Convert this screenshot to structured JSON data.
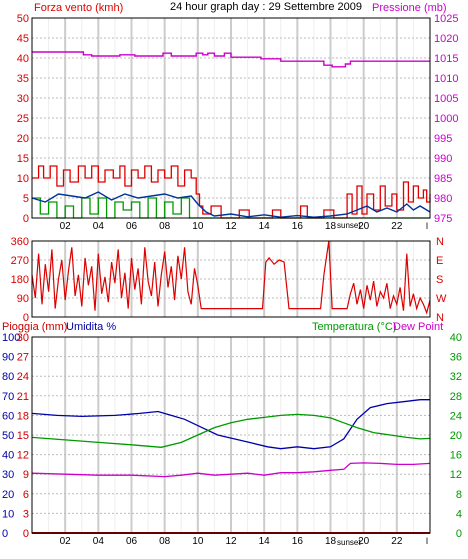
{
  "colors": {
    "wind": "#dd0000",
    "pressure": "#cc00cc",
    "gust": "#003399",
    "green": "#009900",
    "humidity": "#0000aa",
    "rain": "#cc0000",
    "dewpoint": "#cc00cc",
    "grid_v": "#cccccc",
    "grid_h": "#bbbbbb",
    "axis": "#000000"
  },
  "chart_data": [
    {
      "type": "line",
      "name": "wind-pressure",
      "header": {
        "left": "Forza vento (kmh)",
        "center": "24 hour graph day : 29 Settembre 2009",
        "right": "Pressione (mb)"
      },
      "y_left": {
        "ticks": [
          "0",
          "5",
          "10",
          "15",
          "20",
          "25",
          "30",
          "35",
          "40",
          "45",
          "50"
        ],
        "range": [
          0,
          50
        ]
      },
      "y_right": {
        "ticks": [
          "975",
          "980",
          "985",
          "990",
          "995",
          "1000",
          "1005",
          "1010",
          "1015",
          "1020",
          "1025"
        ],
        "range": [
          975,
          1025
        ]
      },
      "x_ticks": [
        "02",
        "04",
        "06",
        "08",
        "10",
        "12",
        "14",
        "16",
        "18",
        "20",
        "22"
      ],
      "x_range": [
        0,
        24
      ],
      "sunset_label": "sunset",
      "sunset_x": 19.2,
      "pressure": [
        [
          0,
          1016.5
        ],
        [
          3.1,
          1016.5
        ],
        [
          3.1,
          1015.8
        ],
        [
          3.6,
          1015.8
        ],
        [
          3.6,
          1015.5
        ],
        [
          5.3,
          1015.5
        ],
        [
          5.3,
          1015.8
        ],
        [
          6.2,
          1015.8
        ],
        [
          6.2,
          1015.5
        ],
        [
          7.9,
          1015.5
        ],
        [
          7.9,
          1016.2
        ],
        [
          8.4,
          1016.2
        ],
        [
          8.4,
          1015.5
        ],
        [
          9.9,
          1015.5
        ],
        [
          9.9,
          1016.2
        ],
        [
          10.3,
          1016.2
        ],
        [
          10.3,
          1015.8
        ],
        [
          10.6,
          1015.8
        ],
        [
          10.6,
          1016.2
        ],
        [
          11.0,
          1016.2
        ],
        [
          11.0,
          1015.5
        ],
        [
          11.6,
          1015.5
        ],
        [
          11.6,
          1016.2
        ],
        [
          12.0,
          1016.2
        ],
        [
          12.0,
          1015.2
        ],
        [
          13.8,
          1015.2
        ],
        [
          13.8,
          1014.8
        ],
        [
          15.0,
          1014.8
        ],
        [
          15.0,
          1014.2
        ],
        [
          17.6,
          1014.2
        ],
        [
          17.6,
          1013.2
        ],
        [
          18.1,
          1013.2
        ],
        [
          18.1,
          1012.8
        ],
        [
          18.9,
          1012.8
        ],
        [
          18.9,
          1013.5
        ],
        [
          19.2,
          1013.5
        ],
        [
          19.2,
          1014.2
        ],
        [
          24,
          1014.2
        ]
      ],
      "wind_max": [
        [
          0,
          10
        ],
        [
          0.4,
          13
        ],
        [
          0.7,
          10
        ],
        [
          1.1,
          13
        ],
        [
          1.5,
          8
        ],
        [
          1.9,
          12
        ],
        [
          2.3,
          9
        ],
        [
          2.8,
          13
        ],
        [
          3.2,
          10
        ],
        [
          3.6,
          13
        ],
        [
          4.0,
          9
        ],
        [
          4.4,
          12
        ],
        [
          4.9,
          10
        ],
        [
          5.3,
          13
        ],
        [
          5.6,
          8
        ],
        [
          6.0,
          12
        ],
        [
          6.4,
          10
        ],
        [
          6.8,
          13
        ],
        [
          7.2,
          9
        ],
        [
          7.6,
          12
        ],
        [
          8.0,
          10
        ],
        [
          8.4,
          13
        ],
        [
          8.8,
          8
        ],
        [
          9.2,
          12
        ],
        [
          9.6,
          10
        ],
        [
          9.9,
          6
        ],
        [
          10.1,
          3
        ],
        [
          10.3,
          1
        ],
        [
          10.8,
          3
        ],
        [
          11.4,
          0
        ],
        [
          12.5,
          2
        ],
        [
          13.1,
          0
        ],
        [
          14.5,
          2
        ],
        [
          15.0,
          0
        ],
        [
          16.2,
          3
        ],
        [
          16.6,
          0
        ],
        [
          17.6,
          2
        ],
        [
          18.2,
          0
        ],
        [
          19.0,
          6
        ],
        [
          19.3,
          1
        ],
        [
          19.6,
          8
        ],
        [
          19.9,
          1
        ],
        [
          20.2,
          6
        ],
        [
          20.6,
          2
        ],
        [
          21.0,
          8
        ],
        [
          21.3,
          3
        ],
        [
          21.7,
          6
        ],
        [
          22.0,
          2
        ],
        [
          22.4,
          9
        ],
        [
          22.7,
          4
        ],
        [
          23.0,
          8
        ],
        [
          23.3,
          5
        ],
        [
          23.6,
          7
        ],
        [
          23.8,
          4
        ],
        [
          24,
          6
        ]
      ],
      "wind_avg": [
        [
          0,
          5
        ],
        [
          0.8,
          4
        ],
        [
          1.6,
          6
        ],
        [
          2.4,
          5.5
        ],
        [
          3.2,
          5
        ],
        [
          4.0,
          6.5
        ],
        [
          4.8,
          4.5
        ],
        [
          5.6,
          6
        ],
        [
          6.4,
          5
        ],
        [
          7.2,
          5.5
        ],
        [
          8.0,
          6
        ],
        [
          8.8,
          5
        ],
        [
          9.6,
          5.5
        ],
        [
          10.0,
          3.5
        ],
        [
          10.5,
          1.5
        ],
        [
          11.0,
          0.5
        ],
        [
          12.0,
          1
        ],
        [
          13.0,
          0.3
        ],
        [
          14.0,
          0.8
        ],
        [
          15.0,
          0.2
        ],
        [
          16.0,
          0.6
        ],
        [
          17.0,
          0.2
        ],
        [
          18.0,
          0.5
        ],
        [
          19.0,
          1
        ],
        [
          19.6,
          2
        ],
        [
          20.2,
          3
        ],
        [
          20.8,
          1.5
        ],
        [
          21.4,
          2.5
        ],
        [
          22.0,
          1.5
        ],
        [
          22.6,
          3.5
        ],
        [
          23.0,
          2
        ],
        [
          23.4,
          3
        ],
        [
          24,
          1.5
        ]
      ],
      "wind_green": [
        [
          0,
          5
        ],
        [
          0.5,
          1
        ],
        [
          1.0,
          4
        ],
        [
          1.5,
          0
        ],
        [
          2.0,
          3
        ],
        [
          2.5,
          0
        ],
        [
          3.0,
          5
        ],
        [
          3.5,
          1
        ],
        [
          4.0,
          5
        ],
        [
          4.5,
          0
        ],
        [
          5.0,
          4
        ],
        [
          5.5,
          2
        ],
        [
          6.0,
          4
        ],
        [
          6.5,
          0
        ],
        [
          7.0,
          5
        ],
        [
          7.5,
          0
        ],
        [
          8.0,
          4
        ],
        [
          8.5,
          1
        ],
        [
          9.0,
          5
        ],
        [
          9.5,
          0
        ],
        [
          10.0,
          0
        ],
        [
          24,
          0
        ]
      ]
    },
    {
      "type": "scatter",
      "name": "wind-direction",
      "y_left": {
        "ticks": [
          "0",
          "90",
          "180",
          "270",
          "360"
        ],
        "range": [
          0,
          360
        ]
      },
      "y_right_labels": [
        "N",
        "W",
        "S",
        "E",
        "N"
      ],
      "x_range": [
        0,
        24
      ],
      "direction": [
        [
          0,
          200
        ],
        [
          0.2,
          90
        ],
        [
          0.4,
          300
        ],
        [
          0.6,
          60
        ],
        [
          0.8,
          250
        ],
        [
          1.0,
          120
        ],
        [
          1.2,
          320
        ],
        [
          1.4,
          40
        ],
        [
          1.6,
          180
        ],
        [
          1.8,
          270
        ],
        [
          2.0,
          80
        ],
        [
          2.2,
          220
        ],
        [
          2.4,
          330
        ],
        [
          2.6,
          100
        ],
        [
          2.8,
          200
        ],
        [
          3.0,
          50
        ],
        [
          3.2,
          280
        ],
        [
          3.4,
          150
        ],
        [
          3.6,
          240
        ],
        [
          3.8,
          30
        ],
        [
          4.0,
          300
        ],
        [
          4.2,
          110
        ],
        [
          4.4,
          190
        ],
        [
          4.6,
          70
        ],
        [
          4.8,
          260
        ],
        [
          5.0,
          160
        ],
        [
          5.2,
          320
        ],
        [
          5.4,
          90
        ],
        [
          5.6,
          210
        ],
        [
          5.8,
          40
        ],
        [
          6.0,
          280
        ],
        [
          6.2,
          130
        ],
        [
          6.4,
          230
        ],
        [
          6.6,
          60
        ],
        [
          6.8,
          330
        ],
        [
          7.0,
          170
        ],
        [
          7.2,
          100
        ],
        [
          7.4,
          260
        ],
        [
          7.6,
          50
        ],
        [
          7.8,
          200
        ],
        [
          8.0,
          310
        ],
        [
          8.2,
          140
        ],
        [
          8.4,
          240
        ],
        [
          8.6,
          80
        ],
        [
          8.8,
          290
        ],
        [
          9.0,
          180
        ],
        [
          9.2,
          330
        ],
        [
          9.4,
          120
        ],
        [
          9.6,
          60
        ],
        [
          9.8,
          230
        ],
        [
          10.0,
          150
        ],
        [
          10.2,
          40
        ],
        [
          10.5,
          40
        ],
        [
          12.0,
          40
        ],
        [
          12.5,
          40
        ],
        [
          13.9,
          40
        ],
        [
          14.1,
          260
        ],
        [
          14.3,
          280
        ],
        [
          14.6,
          250
        ],
        [
          14.9,
          270
        ],
        [
          15.2,
          260
        ],
        [
          15.5,
          40
        ],
        [
          16.5,
          40
        ],
        [
          17.4,
          40
        ],
        [
          17.6,
          200
        ],
        [
          17.9,
          360
        ],
        [
          18.1,
          40
        ],
        [
          19.0,
          40
        ],
        [
          19.2,
          110
        ],
        [
          19.4,
          160
        ],
        [
          19.6,
          60
        ],
        [
          19.8,
          130
        ],
        [
          20.0,
          40
        ],
        [
          20.2,
          150
        ],
        [
          20.4,
          80
        ],
        [
          20.6,
          170
        ],
        [
          20.8,
          50
        ],
        [
          21.0,
          120
        ],
        [
          21.2,
          90
        ],
        [
          21.4,
          160
        ],
        [
          21.6,
          40
        ],
        [
          21.8,
          100
        ],
        [
          22.0,
          60
        ],
        [
          22.2,
          140
        ],
        [
          22.4,
          30
        ],
        [
          22.6,
          300
        ],
        [
          22.8,
          50
        ],
        [
          23.0,
          110
        ],
        [
          23.2,
          40
        ],
        [
          23.4,
          90
        ],
        [
          23.6,
          60
        ],
        [
          23.8,
          20
        ],
        [
          24,
          80
        ]
      ]
    },
    {
      "type": "line",
      "name": "rain-humidity-temperature",
      "header": {
        "rain": "Pioggia (mm)",
        "humidity": "Umidita %",
        "temperature": "Temperatura (°C)",
        "dewpoint": "Dew Point"
      },
      "y_rain": {
        "ticks": [
          "0",
          "3",
          "6",
          "9",
          "12",
          "15",
          "18",
          "21",
          "24",
          "27",
          "30"
        ],
        "range": [
          0,
          30
        ]
      },
      "y_humidity": {
        "ticks": [
          "0",
          "10",
          "20",
          "30",
          "40",
          "50",
          "60",
          "70",
          "80",
          "90",
          "100"
        ],
        "range": [
          0,
          100
        ]
      },
      "y_temperature": {
        "ticks": [
          "0",
          "4",
          "8",
          "12",
          "16",
          "20",
          "24",
          "28",
          "32",
          "36",
          "40"
        ],
        "range": [
          0,
          40
        ]
      },
      "x_ticks": [
        "02",
        "04",
        "06",
        "08",
        "10",
        "12",
        "14",
        "16",
        "18",
        "20",
        "22"
      ],
      "x_range": [
        0,
        24
      ],
      "sunset_label": "sunset",
      "sunset_x": 19.2,
      "humidity": [
        [
          0,
          61
        ],
        [
          1.5,
          60
        ],
        [
          3,
          59.5
        ],
        [
          5,
          60
        ],
        [
          6.5,
          61
        ],
        [
          7.6,
          62
        ],
        [
          8.4,
          60
        ],
        [
          9.2,
          58
        ],
        [
          10.2,
          54
        ],
        [
          11.2,
          50
        ],
        [
          12.2,
          48
        ],
        [
          13.2,
          46
        ],
        [
          14.2,
          44
        ],
        [
          15.0,
          43
        ],
        [
          16.0,
          44
        ],
        [
          17.0,
          43
        ],
        [
          18.0,
          44
        ],
        [
          18.8,
          48
        ],
        [
          19.6,
          58
        ],
        [
          20.4,
          64
        ],
        [
          21.4,
          66
        ],
        [
          22.4,
          67
        ],
        [
          23.4,
          68
        ],
        [
          24,
          68
        ]
      ],
      "temperature": [
        [
          0,
          19.5
        ],
        [
          2,
          19
        ],
        [
          4,
          18.5
        ],
        [
          6,
          18
        ],
        [
          7.8,
          17.5
        ],
        [
          9,
          18.5
        ],
        [
          10,
          20
        ],
        [
          11,
          21.5
        ],
        [
          12,
          22.5
        ],
        [
          13,
          23.2
        ],
        [
          14,
          23.6
        ],
        [
          15,
          24
        ],
        [
          16,
          24.2
        ],
        [
          17,
          24
        ],
        [
          18,
          23.5
        ],
        [
          18.8,
          22.5
        ],
        [
          19.6,
          21.5
        ],
        [
          20.6,
          20.5
        ],
        [
          21.6,
          20
        ],
        [
          22.6,
          19.5
        ],
        [
          23.4,
          19.2
        ],
        [
          24,
          19.3
        ]
      ],
      "dewpoint": [
        [
          0,
          12.2
        ],
        [
          2,
          12
        ],
        [
          4,
          11.8
        ],
        [
          6,
          11.8
        ],
        [
          8,
          11.5
        ],
        [
          9,
          11.8
        ],
        [
          10,
          12.2
        ],
        [
          11,
          11.8
        ],
        [
          12,
          12
        ],
        [
          13,
          12.2
        ],
        [
          14,
          11.8
        ],
        [
          15,
          12.3
        ],
        [
          16,
          12.3
        ],
        [
          17,
          12.5
        ],
        [
          18,
          12.8
        ],
        [
          18.8,
          13
        ],
        [
          19.2,
          14.2
        ],
        [
          20,
          14.3
        ],
        [
          21,
          14.2
        ],
        [
          22,
          14
        ],
        [
          23,
          14
        ],
        [
          24,
          14.2
        ]
      ],
      "rain": [
        [
          0,
          0
        ],
        [
          24,
          0
        ]
      ]
    }
  ]
}
